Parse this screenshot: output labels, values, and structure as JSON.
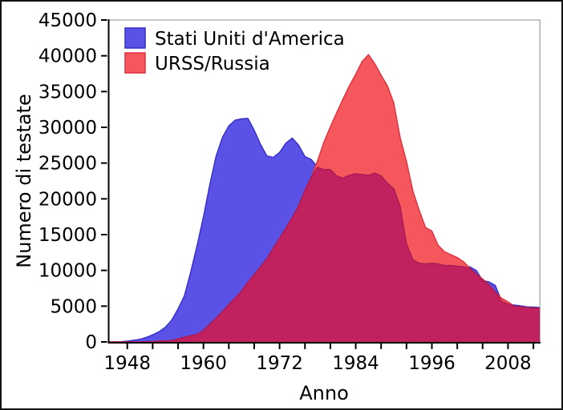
{
  "figure": {
    "background": "#ffffff",
    "border_color": "#121212"
  },
  "chart_data": {
    "type": "area",
    "xlabel": "Anno",
    "ylabel": "Numero di testate",
    "x_range": [
      1945,
      2013
    ],
    "y_range": [
      0,
      45000
    ],
    "grid": false,
    "legend_position": "upper left",
    "y_ticks": [
      0,
      5000,
      10000,
      15000,
      20000,
      25000,
      30000,
      35000,
      40000,
      45000
    ],
    "y_tick_labels": [
      "0",
      "5000",
      "10000",
      "15000",
      "20000",
      "25000",
      "30000",
      "35000",
      "40000",
      "45000"
    ],
    "x_ticks": [
      1948,
      1952,
      1956,
      1960,
      1964,
      1968,
      1972,
      1976,
      1980,
      1984,
      1988,
      1992,
      1996,
      2000,
      2004,
      2008,
      2012
    ],
    "x_major_ticks": [
      1948,
      1960,
      1972,
      1984,
      1996,
      2008
    ],
    "x_major_tick_labels": [
      "1948",
      "1960",
      "1972",
      "1984",
      "1996",
      "2008"
    ],
    "overlap_color": "#c2215f",
    "overlap_edge_color": "#a81b54",
    "years": [
      1945,
      1946,
      1947,
      1948,
      1949,
      1950,
      1951,
      1952,
      1953,
      1954,
      1955,
      1956,
      1957,
      1958,
      1959,
      1960,
      1961,
      1962,
      1963,
      1964,
      1965,
      1966,
      1967,
      1968,
      1969,
      1970,
      1971,
      1972,
      1973,
      1974,
      1975,
      1976,
      1977,
      1978,
      1979,
      1980,
      1981,
      1982,
      1983,
      1984,
      1985,
      1986,
      1987,
      1988,
      1989,
      1990,
      1991,
      1992,
      1993,
      1994,
      1995,
      1996,
      1997,
      1998,
      1999,
      2000,
      2001,
      2002,
      2003,
      2004,
      2005,
      2006,
      2007,
      2008,
      2009,
      2010,
      2011,
      2012,
      2013
    ],
    "series": [
      {
        "name": "Stati Uniti d'America",
        "color": "#5a52e6",
        "edge_color": "#362dc8",
        "values": [
          6,
          11,
          32,
          110,
          235,
          369,
          640,
          1005,
          1436,
          2063,
          3057,
          4618,
          6444,
          9822,
          13500,
          17500,
          22000,
          26000,
          28600,
          30200,
          31000,
          31200,
          31255,
          29600,
          27600,
          26000,
          25800,
          26500,
          27800,
          28500,
          27500,
          25900,
          25500,
          24400,
          24100,
          24100,
          23200,
          22900,
          23300,
          23500,
          23400,
          23300,
          23600,
          23200,
          22200,
          21400,
          19000,
          13700,
          11500,
          11000,
          10900,
          11000,
          10900,
          10700,
          10700,
          10600,
          10500,
          10500,
          10000,
          8600,
          8400,
          7900,
          5700,
          5300,
          5150,
          5050,
          4900,
          4880,
          4800
        ]
      },
      {
        "name": "URSS/Russia",
        "color": "#f4585c",
        "edge_color": "#df2e3e",
        "values": [
          0,
          0,
          0,
          0,
          1,
          5,
          25,
          50,
          120,
          150,
          200,
          426,
          660,
          869,
          1060,
          1605,
          2471,
          3322,
          4238,
          5221,
          6129,
          7089,
          8339,
          9399,
          10538,
          11643,
          13092,
          14478,
          15915,
          17385,
          19055,
          21205,
          23044,
          25393,
          27935,
          30062,
          32049,
          33952,
          35804,
          37431,
          39197,
          40159,
          38900,
          37300,
          35800,
          33400,
          28600,
          25200,
          21100,
          18400,
          16000,
          15500,
          13500,
          12600,
          12200,
          11800,
          11200,
          10300,
          9500,
          8800,
          8000,
          7000,
          6100,
          5600,
          5000,
          4900,
          4800,
          4750,
          4700
        ]
      }
    ]
  }
}
